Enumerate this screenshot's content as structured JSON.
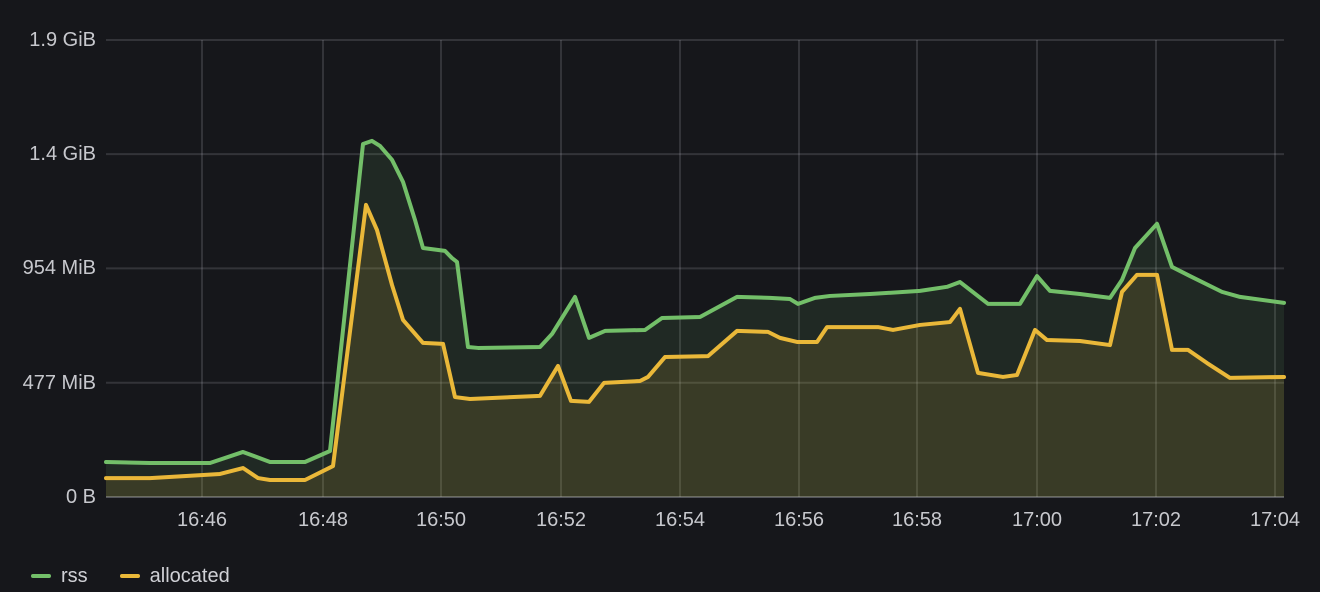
{
  "colors": {
    "background": "#16171b",
    "grid": "rgba(204,204,220,0.16)",
    "axis_line": "rgba(204,204,220,0.22)",
    "tick_text": "#c7c8cd",
    "legend_text": "#d0d1d6",
    "rss_green": "#73bf69",
    "allocated_yellow": "#eab839"
  },
  "chart_data": {
    "type": "area",
    "title": "",
    "grid": true,
    "legend_position": "bottom-left",
    "unit": "bytes (IEC)",
    "x_axis": {
      "range_t_seconds": [
        0,
        1178
      ],
      "start_time_approx": "16:44:25",
      "ticks": [
        {
          "label": "16:46",
          "t": 96
        },
        {
          "label": "16:48",
          "t": 217
        },
        {
          "label": "16:50",
          "t": 335
        },
        {
          "label": "16:52",
          "t": 455
        },
        {
          "label": "16:54",
          "t": 574
        },
        {
          "label": "16:56",
          "t": 693
        },
        {
          "label": "16:58",
          "t": 811
        },
        {
          "label": "17:00",
          "t": 931
        },
        {
          "label": "17:02",
          "t": 1050
        },
        {
          "label": "17:04",
          "t": 1169
        }
      ]
    },
    "y_axis": {
      "top_mib": 1907,
      "ticks": [
        {
          "label": "0 B",
          "mib": 0
        },
        {
          "label": "477 MiB",
          "mib": 477
        },
        {
          "label": "954 MiB",
          "mib": 954
        },
        {
          "label": "1.4 GiB",
          "mib": 1431
        },
        {
          "label": "1.9 GiB",
          "mib": 1907
        }
      ]
    },
    "series": [
      {
        "name": "rss",
        "color": "#73bf69",
        "fill_opacity": 0.11,
        "points_t_mib": [
          [
            0,
            146
          ],
          [
            44,
            142
          ],
          [
            104,
            142
          ],
          [
            137,
            188
          ],
          [
            164,
            146
          ],
          [
            199,
            146
          ],
          [
            224,
            192
          ],
          [
            257,
            1473
          ],
          [
            266,
            1486
          ],
          [
            274,
            1465
          ],
          [
            286,
            1407
          ],
          [
            297,
            1315
          ],
          [
            309,
            1156
          ],
          [
            317,
            1039
          ],
          [
            339,
            1027
          ],
          [
            346,
            997
          ],
          [
            351,
            981
          ],
          [
            362,
            626
          ],
          [
            372,
            622
          ],
          [
            434,
            626
          ],
          [
            446,
            680
          ],
          [
            469,
            835
          ],
          [
            483,
            664
          ],
          [
            499,
            693
          ],
          [
            539,
            697
          ],
          [
            556,
            747
          ],
          [
            594,
            751
          ],
          [
            631,
            835
          ],
          [
            664,
            831
          ],
          [
            684,
            826
          ],
          [
            692,
            806
          ],
          [
            709,
            831
          ],
          [
            724,
            839
          ],
          [
            764,
            847
          ],
          [
            814,
            860
          ],
          [
            841,
            877
          ],
          [
            854,
            897
          ],
          [
            882,
            806
          ],
          [
            914,
            806
          ],
          [
            931,
            922
          ],
          [
            944,
            860
          ],
          [
            974,
            847
          ],
          [
            1004,
            831
          ],
          [
            1016,
            906
          ],
          [
            1029,
            1039
          ],
          [
            1051,
            1140
          ],
          [
            1066,
            960
          ],
          [
            1084,
            922
          ],
          [
            1116,
            856
          ],
          [
            1134,
            835
          ],
          [
            1178,
            810
          ]
        ]
      },
      {
        "name": "allocated",
        "color": "#eab839",
        "fill_opacity": 0.13,
        "points_t_mib": [
          [
            0,
            79
          ],
          [
            44,
            79
          ],
          [
            114,
            96
          ],
          [
            137,
            121
          ],
          [
            152,
            79
          ],
          [
            164,
            71
          ],
          [
            199,
            71
          ],
          [
            227,
            129
          ],
          [
            260,
            1219
          ],
          [
            271,
            1114
          ],
          [
            286,
            885
          ],
          [
            297,
            739
          ],
          [
            317,
            643
          ],
          [
            337,
            639
          ],
          [
            349,
            417
          ],
          [
            364,
            409
          ],
          [
            434,
            422
          ],
          [
            452,
            547
          ],
          [
            465,
            401
          ],
          [
            483,
            397
          ],
          [
            498,
            476
          ],
          [
            534,
            484
          ],
          [
            542,
            501
          ],
          [
            559,
            584
          ],
          [
            602,
            588
          ],
          [
            631,
            693
          ],
          [
            662,
            689
          ],
          [
            674,
            664
          ],
          [
            691,
            647
          ],
          [
            711,
            647
          ],
          [
            721,
            709
          ],
          [
            772,
            709
          ],
          [
            787,
            697
          ],
          [
            814,
            718
          ],
          [
            844,
            730
          ],
          [
            854,
            785
          ],
          [
            872,
            518
          ],
          [
            897,
            501
          ],
          [
            911,
            509
          ],
          [
            929,
            697
          ],
          [
            941,
            655
          ],
          [
            974,
            651
          ],
          [
            1004,
            634
          ],
          [
            1016,
            856
          ],
          [
            1031,
            927
          ],
          [
            1051,
            927
          ],
          [
            1066,
            614
          ],
          [
            1082,
            614
          ],
          [
            1101,
            559
          ],
          [
            1124,
            497
          ],
          [
            1178,
            501
          ]
        ]
      }
    ]
  },
  "legend": {
    "items": [
      "rss",
      "allocated"
    ]
  }
}
